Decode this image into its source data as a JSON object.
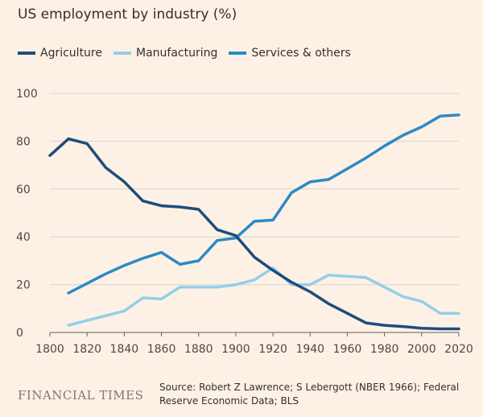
{
  "chart_data": {
    "type": "line",
    "title": "US employment by industry (%)",
    "x": [
      1800,
      1810,
      1820,
      1830,
      1840,
      1850,
      1860,
      1870,
      1880,
      1890,
      1900,
      1910,
      1920,
      1930,
      1940,
      1950,
      1960,
      1970,
      1980,
      1990,
      2000,
      2010,
      2020
    ],
    "series": [
      {
        "name": "Agriculture",
        "color": "#1e4d7b",
        "values": [
          74,
          81,
          79,
          69,
          63,
          55,
          53,
          52.5,
          51.5,
          43,
          40.5,
          31.5,
          26,
          21,
          17,
          12,
          8,
          4,
          3,
          2.5,
          1.8,
          1.5,
          1.5
        ]
      },
      {
        "name": "Manufacturing",
        "color": "#92d0e6",
        "values": [
          null,
          3,
          5,
          7,
          9,
          14.5,
          14,
          19,
          19,
          19,
          20,
          22,
          27,
          20,
          20,
          24,
          23.5,
          23,
          19,
          15,
          13,
          8,
          8
        ]
      },
      {
        "name": "Services & others",
        "color": "#2b8ac4",
        "values": [
          null,
          16.5,
          20.5,
          24.5,
          28,
          31,
          33.5,
          28.5,
          30,
          38.5,
          39.5,
          46.5,
          47,
          58.5,
          63,
          64,
          68.5,
          73,
          78,
          82.5,
          86,
          90.5,
          91
        ]
      }
    ],
    "xlim": [
      1800,
      2020
    ],
    "ylim": [
      0,
      100
    ],
    "xticks": [
      "1800",
      "1820",
      "1840",
      "1860",
      "1880",
      "1900",
      "1920",
      "1940",
      "1960",
      "1980",
      "2000",
      "2020"
    ],
    "yticks": [
      "0",
      "20",
      "40",
      "60",
      "80",
      "100"
    ],
    "grid": "horizontal",
    "legend": "top-left"
  },
  "footer": {
    "logo": "FINANCIAL TIMES",
    "source": "Source: Robert Z Lawrence; S Lebergott (NBER 1966); Federal Reserve Economic Data; BLS"
  }
}
